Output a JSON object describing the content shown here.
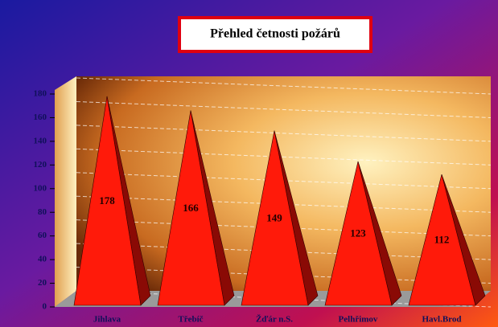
{
  "chart_data": {
    "type": "bar",
    "title": "Přehled četnosti požárů",
    "categories": [
      "Jihlava",
      "Třebíč",
      "Žďár n.S.",
      "Pelhřimov",
      "Havl.Brod"
    ],
    "values": [
      178,
      166,
      149,
      123,
      112
    ],
    "color": "#ff1a0a",
    "ylim": [
      0,
      180
    ],
    "yticks": [
      0,
      20,
      40,
      60,
      80,
      100,
      120,
      140,
      160,
      180
    ],
    "grid": true
  }
}
